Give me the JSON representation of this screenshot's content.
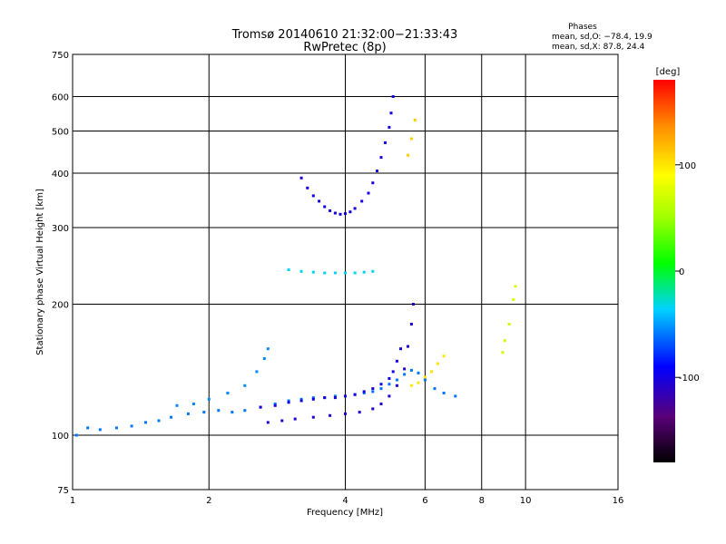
{
  "chart_data": {
    "type": "scatter",
    "title": "Tromsø 20140610 21:32:00−21:33:43",
    "subtitle": "RwPretec (8p)",
    "xlabel": "Frequency [MHz]",
    "ylabel": "Stationary phase Virtual Height [km]",
    "xscale": "log",
    "yscale": "log",
    "xlim": [
      1,
      16
    ],
    "ylim": [
      75,
      750
    ],
    "x_ticks": [
      1,
      2,
      4,
      6,
      8,
      10,
      16
    ],
    "y_ticks": [
      75,
      100,
      200,
      300,
      400,
      500,
      600,
      750
    ],
    "grid": true,
    "stats": {
      "heading": "Phases",
      "line1": "mean, sd,O: −78.4, 19.9",
      "line2": "mean, sd,X:  87.8, 24.4"
    },
    "colorbar": {
      "label": "[deg]",
      "range": [
        -180,
        180
      ],
      "ticks": [
        100,
        0,
        -100
      ],
      "colormap": "rainbow (black-purple-blue-cyan-green-yellow-red)"
    },
    "series": [
      {
        "values": [
          [
            1.02,
            100
          ],
          [
            1.08,
            104
          ],
          [
            1.15,
            103
          ],
          [
            1.25,
            104
          ],
          [
            1.35,
            105
          ],
          [
            1.45,
            107
          ],
          [
            1.55,
            108
          ],
          [
            1.65,
            110
          ],
          [
            1.8,
            112
          ],
          [
            1.95,
            113
          ],
          [
            2.1,
            114
          ],
          [
            2.25,
            113
          ],
          [
            2.4,
            114
          ],
          [
            2.6,
            116
          ],
          [
            2.8,
            118
          ],
          [
            3.0,
            120
          ],
          [
            3.2,
            121
          ],
          [
            3.4,
            122
          ],
          [
            3.6,
            122
          ],
          [
            3.8,
            123
          ],
          [
            4.0,
            123
          ],
          [
            4.2,
            124
          ],
          [
            4.4,
            125
          ],
          [
            4.6,
            126
          ],
          [
            4.8,
            128
          ],
          [
            5.0,
            131
          ],
          [
            5.2,
            134
          ],
          [
            5.4,
            138
          ],
          [
            5.6,
            141
          ],
          [
            5.8,
            139
          ],
          [
            6.0,
            134
          ],
          [
            6.3,
            128
          ],
          [
            6.6,
            125
          ],
          [
            7.0,
            123
          ]
        ],
        "phase": -60
      },
      {
        "values": [
          [
            1.7,
            117
          ],
          [
            1.85,
            118
          ],
          [
            2.0,
            121
          ],
          [
            2.2,
            125
          ],
          [
            2.4,
            130
          ],
          [
            2.55,
            140
          ],
          [
            2.65,
            150
          ],
          [
            2.7,
            158
          ]
        ],
        "phase": -55
      },
      {
        "values": [
          [
            2.6,
            116
          ],
          [
            2.8,
            117
          ],
          [
            3.0,
            119
          ],
          [
            3.2,
            120
          ],
          [
            3.4,
            121
          ],
          [
            3.6,
            122
          ],
          [
            3.8,
            122
          ],
          [
            4.0,
            123
          ],
          [
            4.2,
            124
          ],
          [
            4.4,
            126
          ],
          [
            4.6,
            128
          ],
          [
            4.8,
            131
          ],
          [
            5.0,
            135
          ],
          [
            5.1,
            140
          ],
          [
            5.2,
            148
          ],
          [
            5.3,
            158
          ]
        ],
        "phase": -100
      },
      {
        "values": [
          [
            2.7,
            107
          ],
          [
            2.9,
            108
          ],
          [
            3.1,
            109
          ],
          [
            3.4,
            110
          ],
          [
            3.7,
            111
          ],
          [
            4.0,
            112
          ],
          [
            4.3,
            113
          ],
          [
            4.6,
            115
          ],
          [
            4.8,
            118
          ],
          [
            5.0,
            123
          ],
          [
            5.2,
            130
          ],
          [
            5.4,
            142
          ],
          [
            5.5,
            160
          ],
          [
            5.6,
            180
          ],
          [
            5.65,
            200
          ]
        ],
        "phase": -105
      },
      {
        "values": [
          [
            3.2,
            390
          ],
          [
            3.3,
            370
          ],
          [
            3.4,
            355
          ],
          [
            3.5,
            345
          ],
          [
            3.6,
            335
          ],
          [
            3.7,
            328
          ],
          [
            3.8,
            324
          ],
          [
            3.9,
            322
          ],
          [
            4.0,
            323
          ],
          [
            4.1,
            326
          ],
          [
            4.2,
            332
          ],
          [
            4.35,
            345
          ],
          [
            4.5,
            360
          ],
          [
            4.6,
            380
          ],
          [
            4.7,
            405
          ],
          [
            4.8,
            435
          ],
          [
            4.9,
            470
          ],
          [
            5.0,
            510
          ],
          [
            5.05,
            550
          ],
          [
            5.1,
            600
          ]
        ],
        "phase": -100
      },
      {
        "values": [
          [
            3.0,
            240
          ],
          [
            3.2,
            238
          ],
          [
            3.4,
            237
          ],
          [
            3.6,
            236
          ],
          [
            3.8,
            236
          ],
          [
            4.0,
            236
          ],
          [
            4.2,
            236
          ],
          [
            4.4,
            237
          ],
          [
            4.6,
            238
          ]
        ],
        "phase": -35
      },
      {
        "values": [
          [
            5.6,
            130
          ],
          [
            5.8,
            132
          ],
          [
            6.0,
            136
          ],
          [
            6.2,
            140
          ],
          [
            6.4,
            146
          ],
          [
            6.6,
            152
          ]
        ],
        "phase": 100
      },
      {
        "values": [
          [
            5.5,
            440
          ],
          [
            5.6,
            480
          ],
          [
            5.7,
            530
          ]
        ],
        "phase": 110
      },
      {
        "values": [
          [
            8.9,
            155
          ],
          [
            9.0,
            165
          ],
          [
            9.2,
            180
          ],
          [
            9.4,
            205
          ],
          [
            9.5,
            220
          ]
        ],
        "phase": 70
      }
    ]
  }
}
